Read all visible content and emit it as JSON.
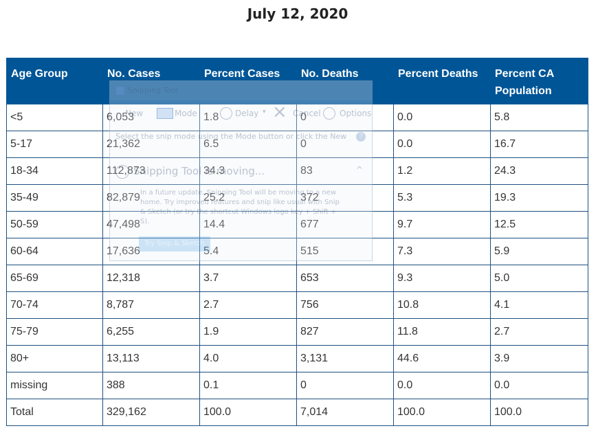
{
  "page": {
    "title": "July 12, 2020"
  },
  "table": {
    "headers": [
      "Age Group",
      "No. Cases",
      "Percent Cases",
      "No. Deaths",
      "Percent Deaths",
      "Percent CA Population"
    ],
    "rows": [
      [
        "<5",
        "6,053",
        "1.8",
        "0",
        "0.0",
        "5.8"
      ],
      [
        "5-17",
        "21,362",
        "6.5",
        "0",
        "0.0",
        "16.7"
      ],
      [
        "18-34",
        "112,873",
        "34.3",
        "83",
        "1.2",
        "24.3"
      ],
      [
        "35-49",
        "82,879",
        "25.2",
        "372",
        "5.3",
        "19.3"
      ],
      [
        "50-59",
        "47,498",
        "14.4",
        "677",
        "9.7",
        "12.5"
      ],
      [
        "60-64",
        "17,636",
        "5.4",
        "515",
        "7.3",
        "5.9"
      ],
      [
        "65-69",
        "12,318",
        "3.7",
        "653",
        "9.3",
        "5.0"
      ],
      [
        "70-74",
        "8,787",
        "2.7",
        "756",
        "10.8",
        "4.1"
      ],
      [
        "75-79",
        "6,255",
        "1.9",
        "827",
        "11.8",
        "2.7"
      ],
      [
        "80+",
        "13,113",
        "4.0",
        "3,131",
        "44.6",
        "3.9"
      ],
      [
        "missing",
        "388",
        "0.1",
        "0",
        "0.0",
        "0.0"
      ],
      [
        "Total",
        "329,162",
        "100.0",
        "7,014",
        "100.0",
        "100.0"
      ]
    ]
  },
  "snipping_tool": {
    "title": "Snipping Tool",
    "new_label": "New",
    "mode_label": "Mode",
    "delay_label": "Delay",
    "cancel_label": "Cancel",
    "options_label": "Options",
    "hint": "Select the snip mode using the Mode button or click the New",
    "moving_title": "Snipping Tool is moving...",
    "message": "In a future update, Snipping Tool will be moving to a new home. Try improved features and snip like usual with Snip & Sketch (or try the shortcut Windows logo key + Shift + S).",
    "try_button": "Try Snip & Sketch"
  },
  "colors": {
    "header_bg": "#005596",
    "header_text": "#ffffff",
    "cell_border": "#1d4f80",
    "body_text": "#333333"
  },
  "icons": {
    "close": "×",
    "caret": "▾",
    "chevron": "^",
    "help": "?"
  }
}
